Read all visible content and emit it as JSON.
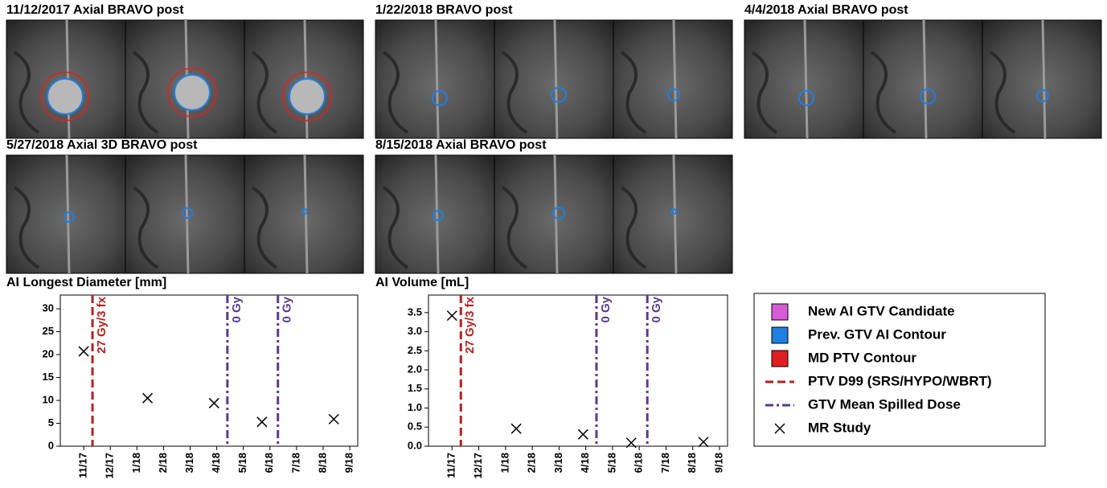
{
  "panels": [
    {
      "title": "11/12/2017 Axial BRAVO post"
    },
    {
      "title": "1/22/2018 BRAVO post"
    },
    {
      "title": "4/4/2018 Axial BRAVO post"
    },
    {
      "title": "5/27/2018 Axial 3D BRAVO post"
    },
    {
      "title": "8/15/2018  Axial BRAVO post"
    }
  ],
  "legend": {
    "items": [
      {
        "label": "New AI GTV Candidate",
        "color": "#d65bd6",
        "kind": "patch"
      },
      {
        "label": "Prev. GTV AI Contour",
        "color": "#1f7fe0",
        "kind": "patch"
      },
      {
        "label": "MD PTV Contour",
        "color": "#e02020",
        "kind": "patch"
      },
      {
        "label": "PTV D99 (SRS/HYPO/WBRT)",
        "color": "#b22222",
        "kind": "dashed"
      },
      {
        "label": "GTV Mean Spilled Dose",
        "color": "#5b3a8c",
        "kind": "dashdot"
      },
      {
        "label": "MR Study",
        "color": "#000000",
        "kind": "x"
      }
    ]
  },
  "chart_data": [
    {
      "type": "scatter",
      "title": "AI Longest Diameter [mm]",
      "series": [
        {
          "color": "#000000",
          "x": [
            0,
            2.4,
            4.9,
            6.7,
            9.4
          ],
          "values": [
            20.7,
            10.5,
            9.4,
            5.3,
            5.9
          ]
        }
      ],
      "vlines": [
        {
          "x": 0.33,
          "label": "27 Gy/3 fx",
          "color": "#b22222",
          "style": "dashed"
        },
        {
          "x": 5.4,
          "label": "0 Gy",
          "color": "#5b3a8c",
          "style": "dashdot"
        },
        {
          "x": 7.3,
          "label": "0 Gy",
          "color": "#5b3a8c",
          "style": "dashdot"
        }
      ],
      "xlim": [
        -0.88,
        10.3
      ],
      "ylim": [
        0,
        33
      ],
      "xticks": [
        {
          "value": 0,
          "label": "11/17"
        },
        {
          "value": 1,
          "label": "12/17"
        },
        {
          "value": 2,
          "label": "1/18"
        },
        {
          "value": 3,
          "label": "2/18"
        },
        {
          "value": 4,
          "label": "3/18"
        },
        {
          "value": 5,
          "label": "4/18"
        },
        {
          "value": 6,
          "label": "5/18"
        },
        {
          "value": 7,
          "label": "6/18"
        },
        {
          "value": 8,
          "label": "7/18"
        },
        {
          "value": 9,
          "label": "8/18"
        },
        {
          "value": 10,
          "label": "9/18"
        }
      ],
      "yticks": [
        0,
        5,
        10,
        15,
        20,
        25,
        30
      ]
    },
    {
      "type": "scatter",
      "title": "AI Volume [mL]",
      "series": [
        {
          "color": "#000000",
          "x": [
            0,
            2.4,
            4.9,
            6.7,
            9.4
          ],
          "values": [
            3.42,
            0.46,
            0.31,
            0.09,
            0.11
          ]
        }
      ],
      "vlines": [
        {
          "x": 0.33,
          "label": "27 Gy/3 fx",
          "color": "#b22222",
          "style": "dashed"
        },
        {
          "x": 5.4,
          "label": "0 Gy",
          "color": "#5b3a8c",
          "style": "dashdot"
        },
        {
          "x": 7.3,
          "label": "0 Gy",
          "color": "#5b3a8c",
          "style": "dashdot"
        }
      ],
      "xlim": [
        -0.88,
        10.3
      ],
      "ylim": [
        0,
        3.96
      ],
      "xticks": [
        {
          "value": 0,
          "label": "11/17"
        },
        {
          "value": 1,
          "label": "12/17"
        },
        {
          "value": 2,
          "label": "1/18"
        },
        {
          "value": 3,
          "label": "2/18"
        },
        {
          "value": 4,
          "label": "3/18"
        },
        {
          "value": 5,
          "label": "4/18"
        },
        {
          "value": 6,
          "label": "5/18"
        },
        {
          "value": 7,
          "label": "6/18"
        },
        {
          "value": 8,
          "label": "7/18"
        },
        {
          "value": 9,
          "label": "8/18"
        },
        {
          "value": 10,
          "label": "9/18"
        }
      ],
      "yticks": [
        {
          "value": 0,
          "label": "0.0"
        },
        0.5,
        {
          "value": 1,
          "label": "1.0"
        },
        1.5,
        {
          "value": 2,
          "label": "2.0"
        },
        2.5,
        {
          "value": 3,
          "label": "3.0"
        },
        3.5
      ]
    }
  ]
}
